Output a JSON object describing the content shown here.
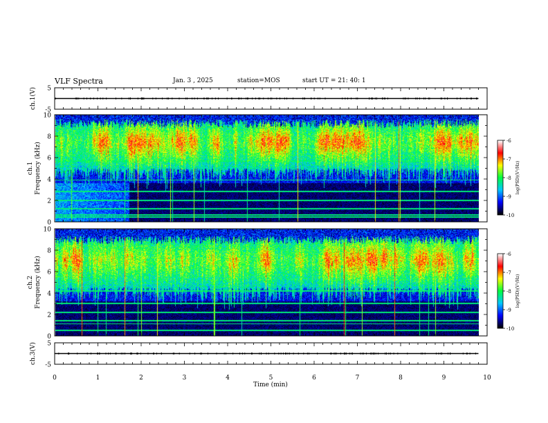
{
  "header": {
    "title": "VLF Spectra",
    "date": "Jan. 3 , 2025",
    "station": "station=MOS",
    "start": "start UT = 21: 40: 1"
  },
  "chart_data": [
    {
      "type": "line",
      "name": "ch1_waveform",
      "ylabel": "ch.1(V)",
      "ylim": [
        -5,
        5
      ],
      "yticks": [
        5,
        -5
      ],
      "xlim": [
        0,
        10
      ],
      "x": [
        0,
        9.8
      ],
      "y": [
        0,
        0
      ],
      "color": "#000000"
    },
    {
      "type": "heatmap",
      "name": "ch1_spectrogram",
      "ylabel": "ch.1 Frequency (kHz)",
      "ylim": [
        0,
        10
      ],
      "yticks": [
        "0",
        "2",
        "4",
        "6",
        "8",
        "10"
      ],
      "xlim": [
        0,
        9.8
      ],
      "colorbar": {
        "label": "log(PSD)(V²/Hz)",
        "ticks": [
          "-6",
          "-7",
          "-8",
          "-9",
          "-10"
        ],
        "range": [
          -10,
          -6
        ]
      },
      "bands_kHz": {
        "low_noise_top": 3.6,
        "chorus_low": 5.0,
        "chorus_high": 9.2
      },
      "line_freqs_kHz": [
        0.4,
        0.6,
        1.2,
        2.0,
        2.8,
        3.9,
        5.7
      ]
    },
    {
      "type": "heatmap",
      "name": "ch2_spectrogram",
      "ylabel": "ch.2 Frequency (kHz)",
      "ylim": [
        0,
        10
      ],
      "yticks": [
        "0",
        "2",
        "4",
        "6",
        "8",
        "10"
      ],
      "xlim": [
        0,
        9.8
      ],
      "colorbar": {
        "label": "log(PSD)(V²/Hz)",
        "ticks": [
          "-6",
          "-7",
          "-8",
          "-9",
          "-10"
        ],
        "range": [
          -10,
          -6
        ]
      },
      "bands_kHz": {
        "low_noise_top": 3.2,
        "chorus_low": 4.5,
        "chorus_high": 9.0
      },
      "line_freqs_kHz": [
        0.5,
        1.1,
        1.4,
        2.2,
        3.0,
        4.2
      ]
    },
    {
      "type": "line",
      "name": "ch3_waveform",
      "ylabel": "ch.3(V)",
      "ylim": [
        -5,
        5
      ],
      "yticks": [
        5,
        -5
      ],
      "xlim": [
        0,
        10
      ],
      "x": [
        0,
        9.8
      ],
      "y": [
        0,
        0
      ],
      "color": "#000000"
    }
  ],
  "xaxis": {
    "label": "Time (min)",
    "ticks": [
      "0",
      "1",
      "2",
      "3",
      "4",
      "5",
      "6",
      "7",
      "8",
      "9",
      "10"
    ],
    "range": [
      0,
      10
    ]
  },
  "colormap": [
    "#000000",
    "#0000ff",
    "#00c8ff",
    "#00ff40",
    "#ffff00",
    "#ff0000",
    "#ffffff"
  ]
}
